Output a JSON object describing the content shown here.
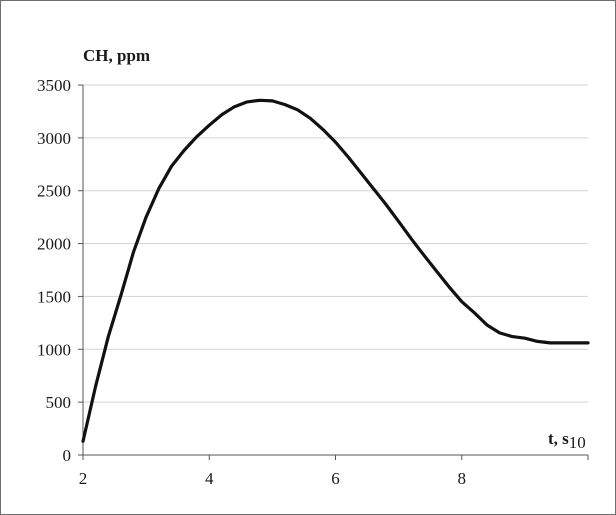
{
  "chart_data": {
    "type": "line",
    "title": "",
    "ylabel": "CH, ppm",
    "xlabel_main": "t, s",
    "xlabel_sub": "10",
    "xlim": [
      2,
      10
    ],
    "ylim": [
      0,
      3500
    ],
    "grid": "horizontal",
    "x_ticks": [
      2,
      4,
      6,
      8
    ],
    "x_tick_labels": [
      "2",
      "4",
      "6",
      "8"
    ],
    "y_ticks": [
      0,
      500,
      1000,
      1500,
      2000,
      2500,
      3000,
      3500
    ],
    "y_tick_labels": [
      "0",
      "500",
      "1000",
      "1500",
      "2000",
      "2500",
      "3000",
      "3500"
    ],
    "series": [
      {
        "x": [
          2.0,
          2.2,
          2.4,
          2.6,
          2.8,
          3.0,
          3.2,
          3.4,
          3.6,
          3.8,
          4.0,
          4.2,
          4.4,
          4.6,
          4.8,
          5.0,
          5.2,
          5.4,
          5.6,
          5.8,
          6.0,
          6.2,
          6.4,
          6.6,
          6.8,
          7.0,
          7.2,
          7.4,
          7.6,
          7.8,
          8.0,
          8.2,
          8.4,
          8.6,
          8.8,
          9.0,
          9.2,
          9.4,
          9.6,
          9.8,
          10.0
        ],
        "y": [
          130,
          650,
          1120,
          1510,
          1920,
          2250,
          2520,
          2730,
          2880,
          3010,
          3120,
          3220,
          3295,
          3340,
          3355,
          3350,
          3315,
          3265,
          3185,
          3080,
          2960,
          2820,
          2670,
          2520,
          2370,
          2210,
          2045,
          1890,
          1740,
          1590,
          1450,
          1345,
          1230,
          1155,
          1120,
          1105,
          1075,
          1060,
          1060,
          1060,
          1060
        ]
      }
    ]
  }
}
